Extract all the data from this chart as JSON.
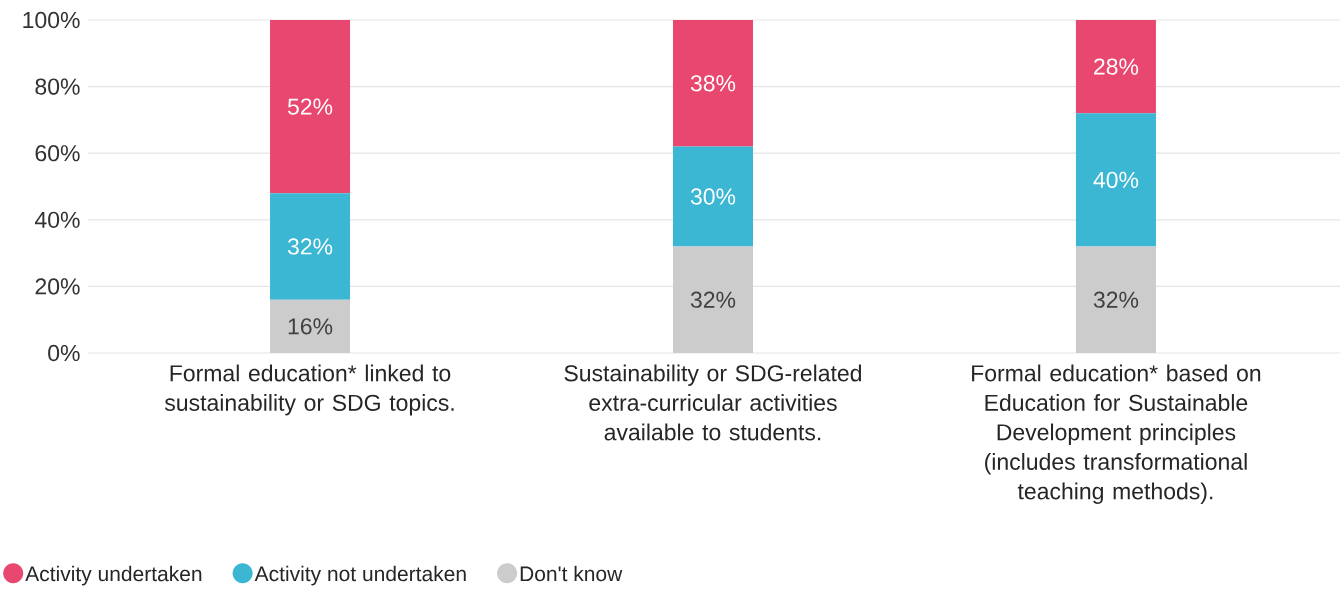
{
  "chart_data": {
    "type": "bar",
    "stacked": true,
    "categories": [
      "Formal education* linked to sustainability or SDG topics.",
      "Sustainability or SDG-related extra-curricular activities available to students.",
      "Formal education* based on Education for Sustainable Development principles (includes transformational teaching methods)."
    ],
    "series": [
      {
        "name": "Don't know",
        "color": "#cccccc",
        "values": [
          16,
          32,
          32
        ],
        "value_labels": [
          "16%",
          "32%",
          "32%"
        ]
      },
      {
        "name": "Activity not undertaken",
        "color": "#3bb6d3",
        "values": [
          32,
          30,
          40
        ],
        "value_labels": [
          "32%",
          "30%",
          "40%"
        ]
      },
      {
        "name": "Activity undertaken",
        "color": "#e8476f",
        "values": [
          52,
          38,
          28
        ],
        "value_labels": [
          "52%",
          "38%",
          "28%"
        ]
      }
    ],
    "ylim": [
      0,
      100
    ],
    "yticks": [
      {
        "value": 0,
        "label": "0%"
      },
      {
        "value": 20,
        "label": "20%"
      },
      {
        "value": 40,
        "label": "40%"
      },
      {
        "value": 60,
        "label": "60%"
      },
      {
        "value": 80,
        "label": "80%"
      },
      {
        "value": 100,
        "label": "100%"
      }
    ],
    "grid": "y",
    "legend": "bottom left"
  }
}
